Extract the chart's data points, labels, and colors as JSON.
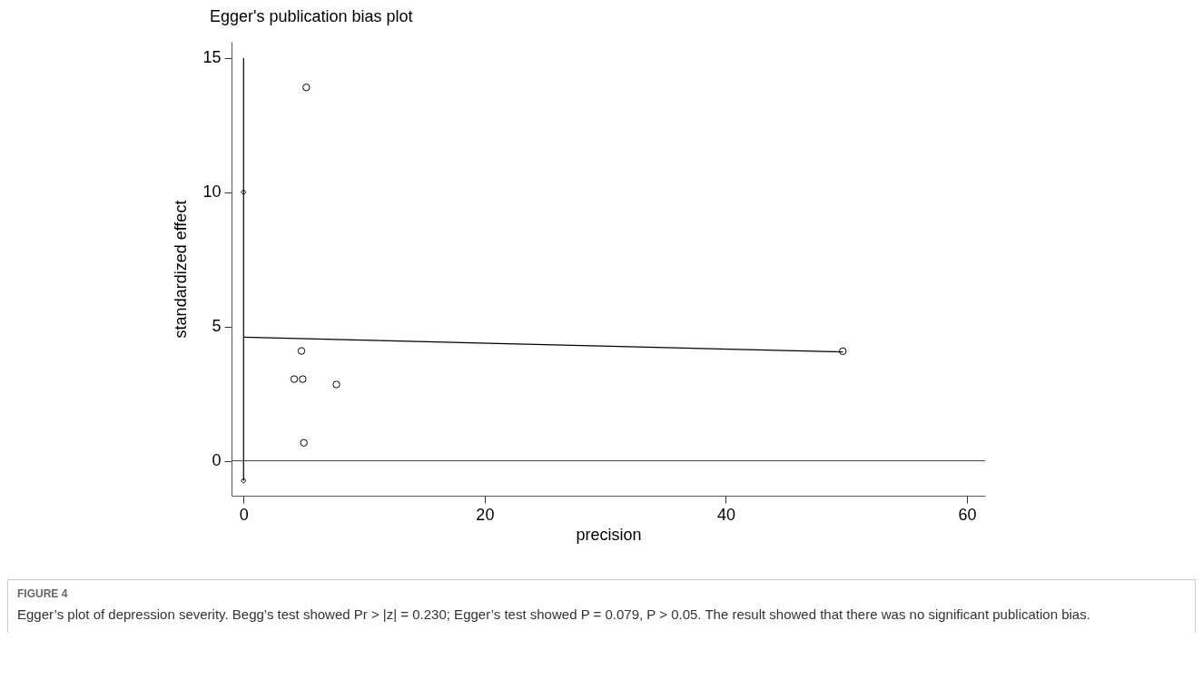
{
  "chart_data": {
    "type": "scatter",
    "title": "Egger's publication bias plot",
    "xlabel": "precision",
    "ylabel": "standardized effect",
    "xlim": [
      -1,
      61.5
    ],
    "ylim": [
      -1.3,
      15.6
    ],
    "xticks": [
      0,
      20,
      40,
      60
    ],
    "yticks": [
      0,
      5,
      10,
      15
    ],
    "grid": false,
    "ref_lines": [
      {
        "axis": "y",
        "value": 0
      }
    ],
    "series": [
      {
        "color": "#000000",
        "marker": "circle",
        "x": [
          5.2,
          4.8,
          4.2,
          4.9,
          7.7,
          5.0,
          49.7
        ],
        "values": [
          13.9,
          4.09,
          3.04,
          3.04,
          2.84,
          0.67,
          4.08
        ]
      },
      {
        "type": "line",
        "color": "#000000",
        "marker": "none",
        "x": [
          0,
          49.7
        ],
        "values": [
          4.6,
          4.05
        ]
      },
      {
        "type": "line",
        "color": "#000000",
        "marker": "none",
        "x": [
          0,
          0
        ],
        "values": [
          -0.74,
          15
        ]
      },
      {
        "type": "scatter",
        "color": "#000000",
        "marker": "diamond",
        "x": [
          0,
          0
        ],
        "values": [
          10,
          -0.74
        ]
      }
    ],
    "annotations": [
      "FIGURE 4",
      "Egger’s plot of depression severity. Begg’s test showed Pr > |z| = 0.230; Egger’s test showed P = 0.079, P > 0.05. The result showed that there was no significant publication bias."
    ]
  }
}
